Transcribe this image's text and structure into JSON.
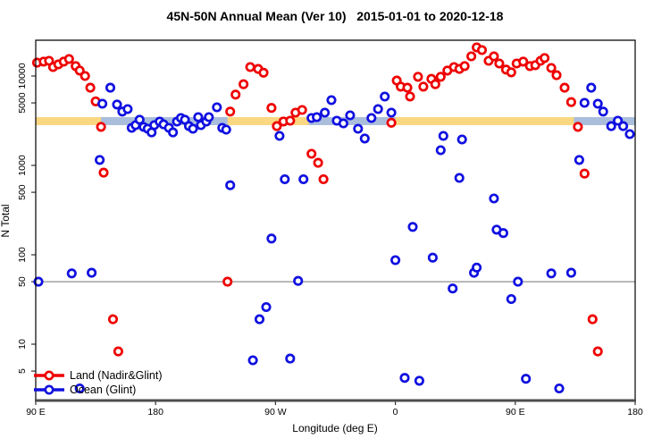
{
  "title": "45N-50N Annual Mean (Ver 10)   2015-01-01 to 2020-12-18",
  "chart_data": {
    "type": "scatter",
    "title": "45N-50N Annual Mean (Ver 10)   2015-01-01 to 2020-12-18",
    "xlabel": "Longitude (deg E)",
    "ylabel": "N Total",
    "x_axis": {
      "domain_deg": [
        90,
        540
      ],
      "ticks": [
        {
          "pos": 90,
          "label": "90 E"
        },
        {
          "pos": 180,
          "label": "180"
        },
        {
          "pos": 270,
          "label": "90 W"
        },
        {
          "pos": 360,
          "label": "0"
        },
        {
          "pos": 450,
          "label": "90 E"
        },
        {
          "pos": 540,
          "label": "180"
        }
      ]
    },
    "y_axis": {
      "scale": "log10",
      "domain": [
        2.3,
        25000
      ],
      "ticks": [
        {
          "value": 5,
          "label": "5"
        },
        {
          "value": 10,
          "label": "10"
        },
        {
          "value": 50,
          "label": "50"
        },
        {
          "value": 100,
          "label": "100"
        },
        {
          "value": 500,
          "label": "500"
        },
        {
          "value": 1000,
          "label": "1000"
        },
        {
          "value": 5000,
          "label": "5000"
        },
        {
          "value": 10000,
          "label": "10000"
        }
      ]
    },
    "reference_line": {
      "value": 50,
      "color": "#8f8f8f"
    },
    "band": {
      "v_min": 2820,
      "v_max": 3470,
      "land_color": "#FBD781",
      "ocean_color": "#AABEDC",
      "ocean_segments_deg": [
        [
          139,
          234
        ],
        [
          295,
          360
        ],
        [
          494,
          540
        ]
      ]
    },
    "legend_position": "bottom-left",
    "series": [
      {
        "name": "Land (Nadir&Glint)",
        "color": "#EE0000",
        "points": [
          [
            91,
            14100
          ],
          [
            96,
            14500
          ],
          [
            100,
            14800
          ],
          [
            103,
            12600
          ],
          [
            107,
            13500
          ],
          [
            111,
            14500
          ],
          [
            115,
            15500
          ],
          [
            120,
            12900
          ],
          [
            123,
            11500
          ],
          [
            127,
            10000
          ],
          [
            131,
            7400
          ],
          [
            135,
            5200
          ],
          [
            139,
            2700
          ],
          [
            141,
            830
          ],
          [
            148,
            19
          ],
          [
            152,
            8.3
          ],
          [
            234,
            50
          ],
          [
            236,
            4000
          ],
          [
            240,
            6200
          ],
          [
            246,
            8100
          ],
          [
            251,
            12600
          ],
          [
            257,
            12000
          ],
          [
            261,
            10900
          ],
          [
            267,
            4400
          ],
          [
            271,
            2750
          ],
          [
            276,
            3100
          ],
          [
            281,
            3160
          ],
          [
            285,
            3890
          ],
          [
            290,
            4170
          ],
          [
            297,
            1350
          ],
          [
            302,
            1070
          ],
          [
            306,
            700
          ],
          [
            357,
            3000
          ],
          [
            361,
            8900
          ],
          [
            364,
            7600
          ],
          [
            369,
            7400
          ],
          [
            371,
            5900
          ],
          [
            377,
            9800
          ],
          [
            381,
            7600
          ],
          [
            387,
            9300
          ],
          [
            390,
            8100
          ],
          [
            394,
            9800
          ],
          [
            399,
            11500
          ],
          [
            404,
            12600
          ],
          [
            408,
            12000
          ],
          [
            412,
            12900
          ],
          [
            417,
            16600
          ],
          [
            421,
            20900
          ],
          [
            425,
            19500
          ],
          [
            430,
            14800
          ],
          [
            434,
            16600
          ],
          [
            438,
            13800
          ],
          [
            443,
            11800
          ],
          [
            447,
            11000
          ],
          [
            451,
            13800
          ],
          [
            456,
            14500
          ],
          [
            461,
            12900
          ],
          [
            465,
            13200
          ],
          [
            469,
            14800
          ],
          [
            472,
            15900
          ],
          [
            477,
            12300
          ],
          [
            481,
            10200
          ],
          [
            487,
            7400
          ],
          [
            492,
            5100
          ],
          [
            497,
            2700
          ],
          [
            502,
            810
          ],
          [
            508,
            19
          ],
          [
            512,
            8.3
          ]
        ]
      },
      {
        "name": "Ocean (Glint)",
        "color": "#1010E0",
        "points": [
          [
            92,
            50
          ],
          [
            117,
            62
          ],
          [
            123,
            3.2
          ],
          [
            132,
            63
          ],
          [
            138,
            1150
          ],
          [
            140,
            4900
          ],
          [
            146,
            7400
          ],
          [
            151,
            4800
          ],
          [
            155,
            4000
          ],
          [
            159,
            4270
          ],
          [
            162,
            2630
          ],
          [
            165,
            2820
          ],
          [
            168,
            3240
          ],
          [
            171,
            2690
          ],
          [
            174,
            2570
          ],
          [
            177,
            2340
          ],
          [
            179,
            2820
          ],
          [
            183,
            3090
          ],
          [
            186,
            2880
          ],
          [
            190,
            2630
          ],
          [
            193,
            2340
          ],
          [
            196,
            3090
          ],
          [
            199,
            3390
          ],
          [
            202,
            3240
          ],
          [
            205,
            2750
          ],
          [
            208,
            2570
          ],
          [
            212,
            3470
          ],
          [
            214,
            2820
          ],
          [
            218,
            3090
          ],
          [
            220,
            3470
          ],
          [
            226,
            4470
          ],
          [
            230,
            2630
          ],
          [
            233,
            2510
          ],
          [
            236,
            600
          ],
          [
            253,
            6.6
          ],
          [
            258,
            19
          ],
          [
            263,
            26
          ],
          [
            267,
            152
          ],
          [
            273,
            2140
          ],
          [
            277,
            700
          ],
          [
            281,
            6.9
          ],
          [
            287,
            51
          ],
          [
            291,
            700
          ],
          [
            297,
            3390
          ],
          [
            301,
            3470
          ],
          [
            307,
            3890
          ],
          [
            312,
            5370
          ],
          [
            316,
            3160
          ],
          [
            321,
            2950
          ],
          [
            326,
            3630
          ],
          [
            332,
            2570
          ],
          [
            337,
            2000
          ],
          [
            342,
            3390
          ],
          [
            347,
            4270
          ],
          [
            352,
            5890
          ],
          [
            357,
            3890
          ],
          [
            360,
            87
          ],
          [
            367,
            4.2
          ],
          [
            373,
            205
          ],
          [
            378,
            3.9
          ],
          [
            388,
            93
          ],
          [
            394,
            1480
          ],
          [
            396,
            2140
          ],
          [
            403,
            42
          ],
          [
            408,
            724
          ],
          [
            410,
            1950
          ],
          [
            419,
            63
          ],
          [
            421,
            72
          ],
          [
            434,
            427
          ],
          [
            436,
            191
          ],
          [
            441,
            175
          ],
          [
            447,
            32
          ],
          [
            452,
            50
          ],
          [
            458,
            4.1
          ],
          [
            477,
            62
          ],
          [
            483,
            3.2
          ],
          [
            492,
            63
          ],
          [
            498,
            1150
          ],
          [
            502,
            5010
          ],
          [
            507,
            7400
          ],
          [
            512,
            4900
          ],
          [
            516,
            4000
          ],
          [
            522,
            2750
          ],
          [
            527,
            3160
          ],
          [
            531,
            2750
          ],
          [
            536,
            2240
          ]
        ]
      }
    ]
  }
}
